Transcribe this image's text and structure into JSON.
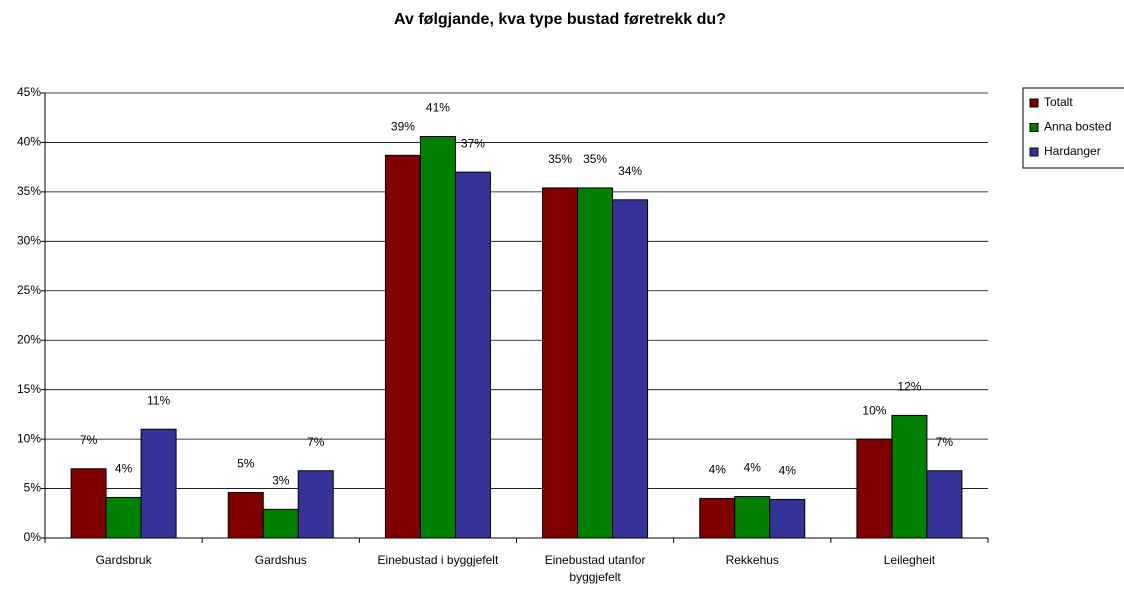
{
  "chart_data": {
    "type": "bar",
    "title": "Av følgjande, kva type bustad føretrekk du?",
    "categories": [
      "Gardsbruk",
      "Gardshus",
      "Einebustad i byggjefelt",
      "Einebustad utanfor byggjefelt",
      "Rekkehus",
      "Leilegheit"
    ],
    "series": [
      {
        "name": "Totalt",
        "color": "#800000",
        "values": [
          7.0,
          4.6,
          38.7,
          35.4,
          4.0,
          10.0
        ],
        "value_labels": [
          "7%",
          "5%",
          "39%",
          "35%",
          "4%",
          "10%"
        ]
      },
      {
        "name": "Anna bosted",
        "color": "#008000",
        "values": [
          4.1,
          2.9,
          40.6,
          35.4,
          4.2,
          12.4
        ],
        "value_labels": [
          "4%",
          "3%",
          "41%",
          "35%",
          "4%",
          "12%"
        ]
      },
      {
        "name": "Hardanger",
        "color": "#333399",
        "values": [
          11.0,
          6.8,
          37.0,
          34.2,
          3.9,
          6.8
        ],
        "value_labels": [
          "11%",
          "7%",
          "37%",
          "34%",
          "4%",
          "7%"
        ]
      }
    ],
    "ylim": [
      0,
      45
    ],
    "yticks": [
      {
        "value": 0,
        "label": "0%"
      },
      {
        "value": 5,
        "label": "5%"
      },
      {
        "value": 10,
        "label": "10%"
      },
      {
        "value": 15,
        "label": "15%"
      },
      {
        "value": 20,
        "label": "20%"
      },
      {
        "value": 25,
        "label": "25%"
      },
      {
        "value": 30,
        "label": "30%"
      },
      {
        "value": 35,
        "label": "35%"
      },
      {
        "value": 40,
        "label": "40%"
      },
      {
        "value": 45,
        "label": "45%"
      }
    ],
    "grid": true,
    "legend": "right"
  }
}
